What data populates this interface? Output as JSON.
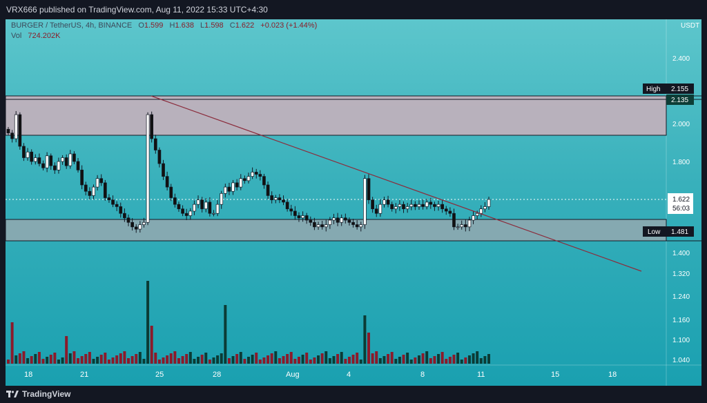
{
  "header": {
    "published_text": "VRX666 published on TradingView.com, Aug 11, 2022 15:33 UTC+4:30"
  },
  "legend": {
    "symbol": "BURGER / TetherUS, 4h, BINANCE",
    "o_label": "O",
    "o_value": "1.599",
    "h_label": "H",
    "h_value": "1.638",
    "l_label": "L",
    "l_value": "1.598",
    "c_label": "C",
    "c_value": "1.622",
    "change": "+0.023 (+1.44%)",
    "vol_label": "Vol",
    "vol_value": "724.202K"
  },
  "price_axis": {
    "currency": "USDT",
    "ticks": [
      "2.400",
      "2.000",
      "1.800",
      "1.400",
      "1.320",
      "1.240",
      "1.160",
      "1.100",
      "1.040"
    ],
    "high_label": "High",
    "high_value": "2.155",
    "level_2135": "2.135",
    "current_price": "1.622",
    "countdown": "56:03",
    "low_label": "Low",
    "low_value": "1.481"
  },
  "footer": {
    "brand": "TradingView"
  },
  "colors": {
    "up": "#ffffff",
    "down": "#111111",
    "vol_up": "#0b3b35",
    "vol_down": "#8b1a2a",
    "trendline": "#8b2c3c",
    "zone_top": "#bfb0bc",
    "zone_bottom": "#8aa9b0"
  },
  "chart_data": {
    "type": "candlestick",
    "title": "BURGER / TetherUS, 4h, BINANCE",
    "x_labels": [
      "18",
      "21",
      "25",
      "28",
      "Aug",
      "4",
      "8",
      "11",
      "15",
      "18"
    ],
    "y_ticks": [
      2.4,
      2.0,
      1.8,
      1.4,
      1.32,
      1.24,
      1.16,
      1.1,
      1.04
    ],
    "resistance_zone": [
      1.955,
      2.155
    ],
    "support_zone": [
      1.445,
      1.505
    ],
    "high": 2.155,
    "low": 1.481,
    "last": 1.622,
    "trendline": {
      "from": {
        "date": "Jul 24",
        "price": 2.155
      },
      "to": {
        "date": "Aug 17",
        "price": 1.323
      }
    },
    "volume_peaks": [
      {
        "date": "Jul 24",
        "volume": "highest"
      },
      {
        "date": "Jul 29",
        "volume": "high"
      },
      {
        "date": "Aug 5",
        "volume": "high"
      }
    ],
    "closes": [
      1.95,
      1.92,
      2.05,
      1.88,
      1.82,
      1.85,
      1.8,
      1.82,
      1.79,
      1.77,
      1.83,
      1.78,
      1.76,
      1.8,
      1.82,
      1.78,
      1.84,
      1.8,
      1.76,
      1.69,
      1.66,
      1.64,
      1.68,
      1.72,
      1.7,
      1.63,
      1.62,
      1.6,
      1.59,
      1.56,
      1.54,
      1.52,
      1.5,
      1.49,
      1.51,
      1.52,
      2.05,
      1.92,
      1.86,
      1.79,
      1.73,
      1.68,
      1.63,
      1.6,
      1.58,
      1.56,
      1.55,
      1.57,
      1.6,
      1.62,
      1.58,
      1.61,
      1.56,
      1.56,
      1.6,
      1.65,
      1.68,
      1.66,
      1.7,
      1.68,
      1.72,
      1.71,
      1.73,
      1.75,
      1.74,
      1.73,
      1.69,
      1.64,
      1.62,
      1.63,
      1.62,
      1.61,
      1.58,
      1.57,
      1.55,
      1.54,
      1.55,
      1.53,
      1.52,
      1.5,
      1.51,
      1.5,
      1.51,
      1.53,
      1.54,
      1.52,
      1.54,
      1.53,
      1.52,
      1.51,
      1.5,
      1.51,
      1.72,
      1.62,
      1.58,
      1.56,
      1.6,
      1.62,
      1.6,
      1.58,
      1.59,
      1.6,
      1.58,
      1.59,
      1.6,
      1.59,
      1.6,
      1.59,
      1.61,
      1.6,
      1.59,
      1.6,
      1.58,
      1.57,
      1.56,
      1.5,
      1.5,
      1.51,
      1.5,
      1.53,
      1.55,
      1.56,
      1.58,
      1.59,
      1.622
    ]
  }
}
